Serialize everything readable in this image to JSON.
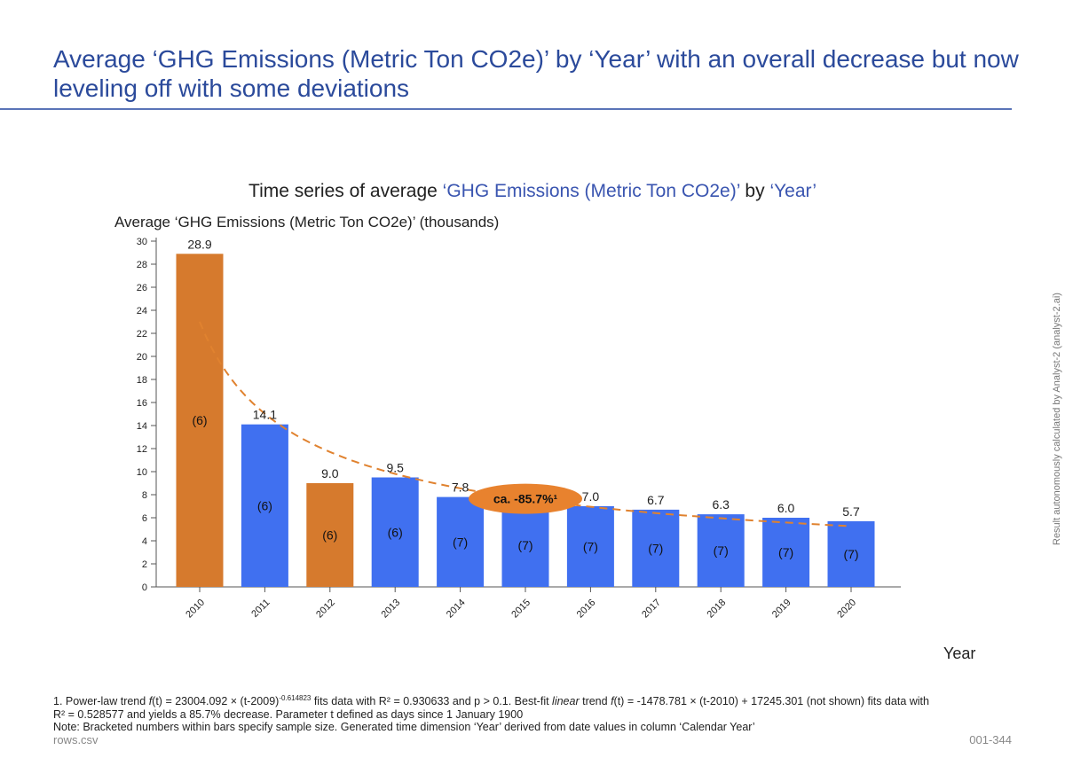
{
  "page": {
    "title": "Average ‘GHG Emissions (Metric Ton CO2e)’ by ‘Year’ with an overall decrease but now leveling off with some deviations",
    "side_note": "Result autonomously calculated by Analyst-2 (analyst-2.ai)",
    "source_file": "rows.csv",
    "page_id": "001-344"
  },
  "footnotes": {
    "fn1_prefix": "1. Power-law trend ",
    "fn1_f": "f",
    "fn1_eq": "(t) = 23004.092 × (t-2009)",
    "fn1_exp": "-0.614823",
    "fn1_mid": " fits data with R² = 0.930633 and p > 0.1. Best-fit ",
    "fn1_linear": "linear",
    "fn1_trend": " trend ",
    "fn1_f2": "f",
    "fn1_eq2": "(t) = -1478.781 × (t-2010) + 17245.301 (not shown) fits data with",
    "line2": "R² = 0.528577 and yields a 85.7% decrease. Parameter t defined as days since 1 January 1900",
    "line3": "Note: Bracketed numbers within bars specify sample size.   Generated time dimension ‘Year’ derived from date values in column ‘Calendar Year’"
  },
  "chart_data": {
    "type": "bar",
    "title_prefix": "Time series of average ",
    "title_metric": "‘GHG Emissions (Metric Ton CO2e)’",
    "title_by": " by ",
    "title_dim": "‘Year’",
    "ylabel": "Average ‘GHG Emissions (Metric Ton CO2e)’ (thousands)",
    "xlabel": "Year",
    "ylim": [
      0,
      30
    ],
    "yticks": [
      0,
      2,
      4,
      6,
      8,
      10,
      12,
      14,
      16,
      18,
      20,
      22,
      24,
      26,
      28,
      30
    ],
    "categories": [
      "2010",
      "2011",
      "2012",
      "2013",
      "2014",
      "2015",
      "2016",
      "2017",
      "2018",
      "2019",
      "2020"
    ],
    "values": [
      28.9,
      14.1,
      9.0,
      9.5,
      7.8,
      7.2,
      7.0,
      6.7,
      6.3,
      6.0,
      5.7
    ],
    "value_labels": [
      "28.9",
      "14.1",
      "9.0",
      "9.5",
      "7.8",
      "",
      "7.0",
      "6.7",
      "6.3",
      "6.0",
      "5.7"
    ],
    "sample_sizes": [
      "(6)",
      "(6)",
      "(6)",
      "(6)",
      "(7)",
      "(7)",
      "(7)",
      "(7)",
      "(7)",
      "(7)",
      "(7)"
    ],
    "highlighted": [
      true,
      false,
      true,
      false,
      false,
      false,
      false,
      false,
      false,
      false,
      false
    ],
    "trend": {
      "type": "power-law",
      "a": 23.004092,
      "b": -0.614823,
      "x": [
        2010,
        2011,
        2012,
        2013,
        2014,
        2015,
        2016,
        2017,
        2018,
        2019,
        2020
      ],
      "label": "ca. -85.7%¹"
    },
    "colors": {
      "bar": "#4070f0",
      "highlight": "#d67a2d",
      "trend": "#e0822f",
      "callout": "#e8822e",
      "metric_text": "#3a55b0"
    }
  }
}
